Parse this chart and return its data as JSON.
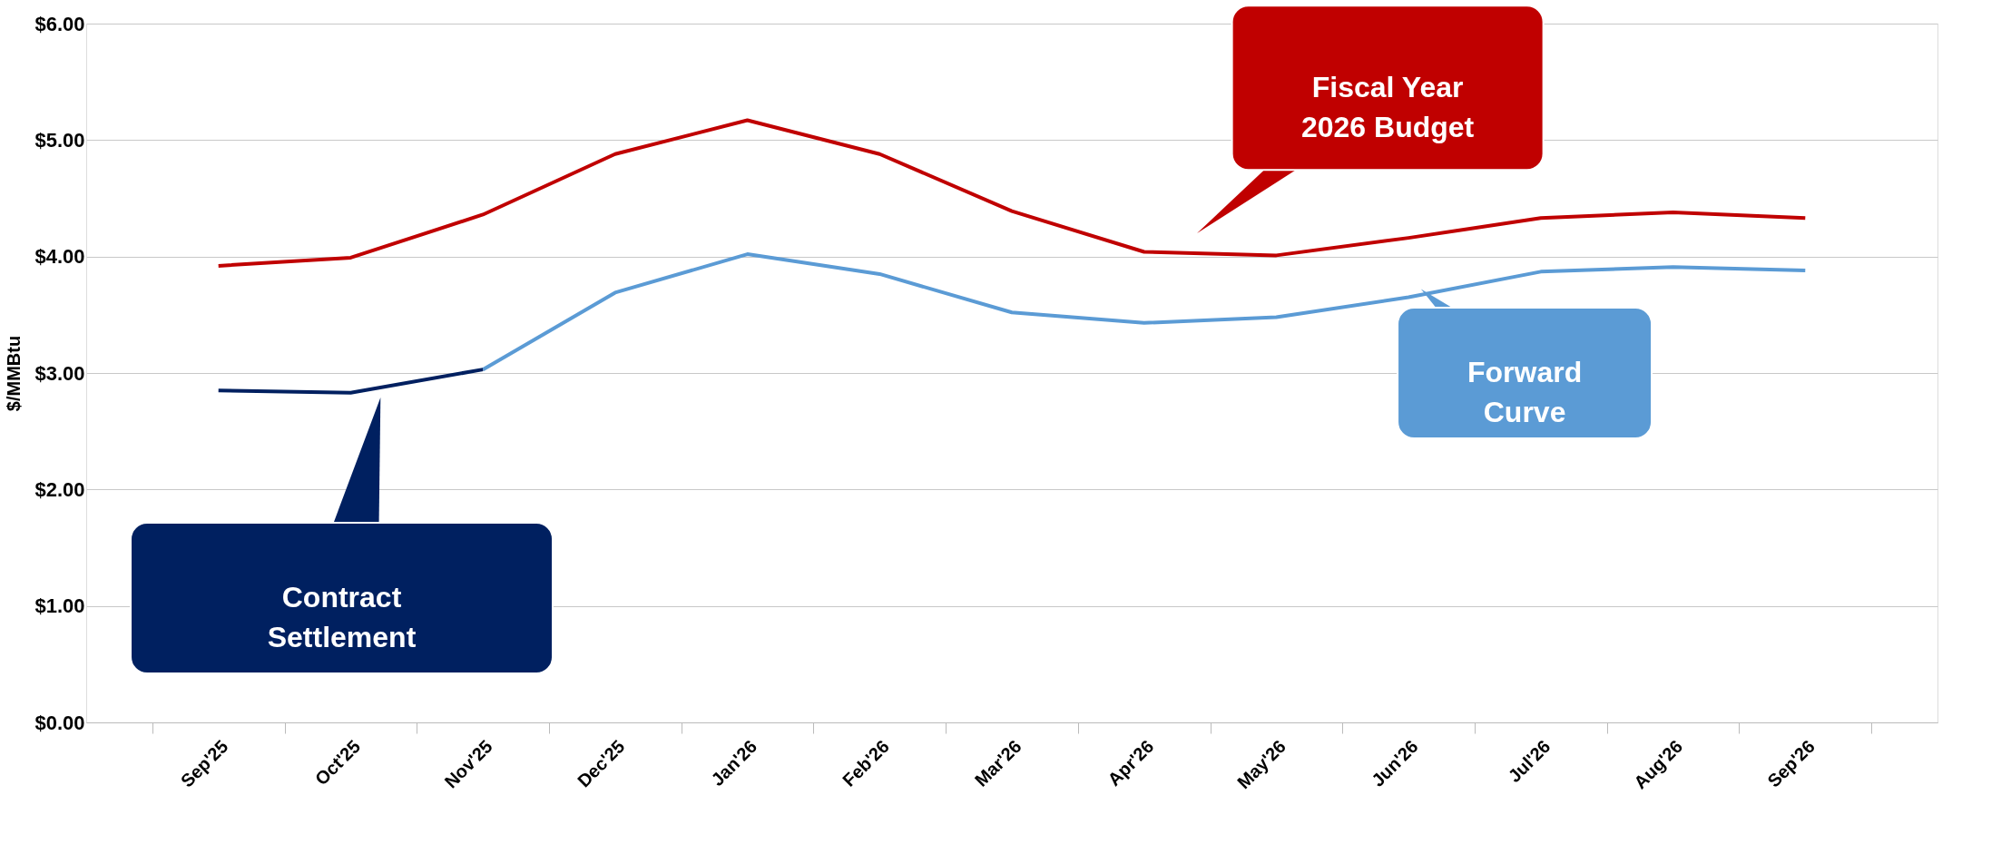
{
  "chart_data": {
    "type": "line",
    "ylabel": "$/MMBtu",
    "categories": [
      "Sep'25",
      "Oct'25",
      "Nov'25",
      "Dec'25",
      "Jan'26",
      "Feb'26",
      "Mar'26",
      "Apr'26",
      "May'26",
      "Jun'26",
      "Jul'26",
      "Aug'26",
      "Sep'26"
    ],
    "series": [
      {
        "name": "Fiscal Year 2026 Budget",
        "color": "#c00000",
        "values": [
          3.92,
          3.99,
          4.36,
          4.88,
          5.17,
          4.88,
          4.39,
          4.04,
          4.01,
          4.16,
          4.33,
          4.38,
          4.33
        ]
      },
      {
        "name": "Forward Curve",
        "color": "#5b9bd5",
        "values": [
          null,
          null,
          3.03,
          3.69,
          4.02,
          3.85,
          3.52,
          3.43,
          3.48,
          3.65,
          3.87,
          3.91,
          3.88
        ]
      },
      {
        "name": "Contract Settlement",
        "color": "#002060",
        "values": [
          2.85,
          2.83,
          3.03,
          null,
          null,
          null,
          null,
          null,
          null,
          null,
          null,
          null,
          null
        ]
      }
    ],
    "ylim": [
      0,
      6
    ],
    "yticks": [
      {
        "value": 0,
        "label": "$0.00"
      },
      {
        "value": 1,
        "label": "$1.00"
      },
      {
        "value": 2,
        "label": "$2.00"
      },
      {
        "value": 3,
        "label": "$3.00"
      },
      {
        "value": 4,
        "label": "$4.00"
      },
      {
        "value": 5,
        "label": "$5.00"
      },
      {
        "value": 6,
        "label": "$6.00"
      }
    ],
    "grid": "y",
    "marker": "none",
    "line_style": "solid"
  }
}
